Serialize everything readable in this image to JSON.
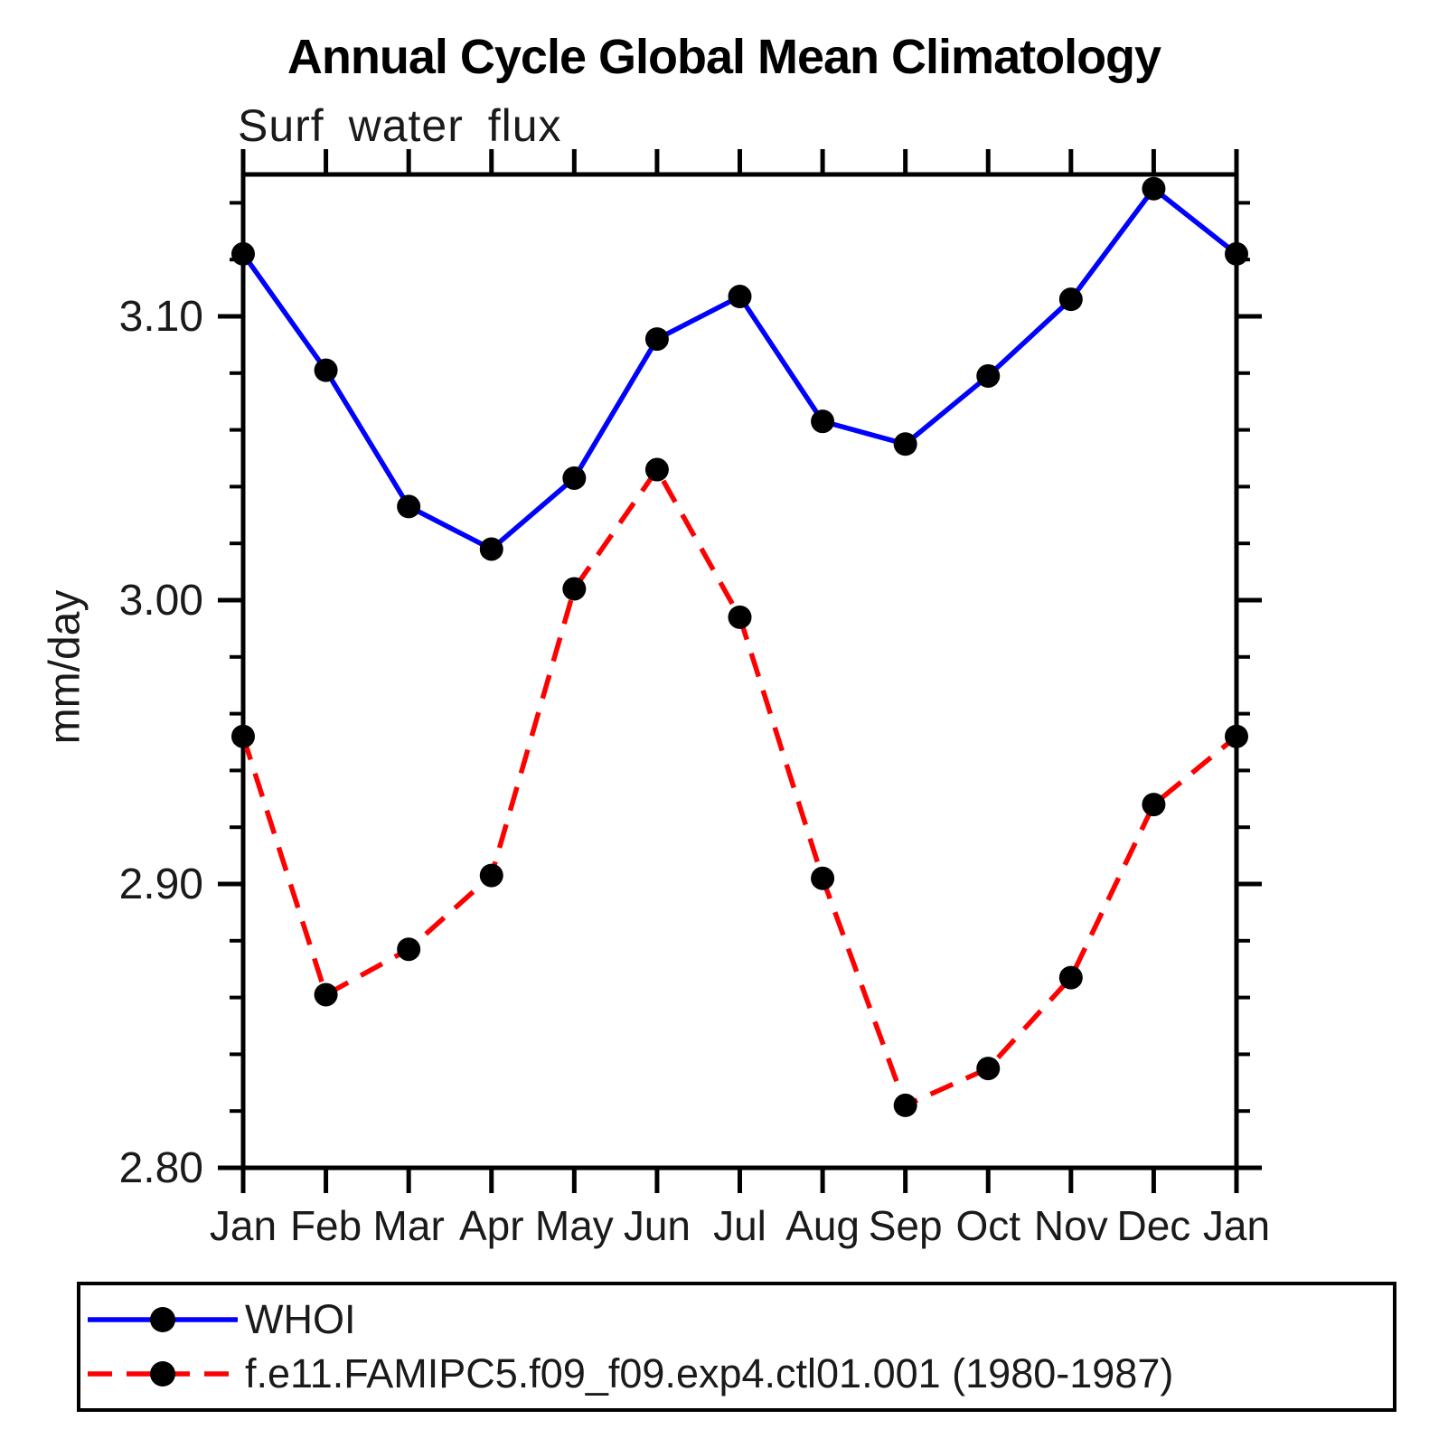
{
  "chart_data": {
    "type": "line",
    "title": "Annual Cycle Global Mean Climatology",
    "subtitle": "Surf water flux",
    "ylabel": "mm/day",
    "xlabel": "",
    "x_categories": [
      "Jan",
      "Feb",
      "Mar",
      "Apr",
      "May",
      "Jun",
      "Jul",
      "Aug",
      "Sep",
      "Oct",
      "Nov",
      "Dec",
      "Jan"
    ],
    "series": [
      {
        "name": "WHOI",
        "color": "#0000ff",
        "line_style": "solid",
        "marker": "filled-circle",
        "marker_color": "#000000",
        "values": [
          3.122,
          3.081,
          3.033,
          3.018,
          3.043,
          3.092,
          3.107,
          3.063,
          3.055,
          3.079,
          3.106,
          3.145,
          3.122
        ]
      },
      {
        "name": "f.e11.FAMIPC5.f09_f09.exp4.ctl01.001 (1980-1987)",
        "color": "#ff0000",
        "line_style": "dashed",
        "marker": "filled-circle",
        "marker_color": "#000000",
        "values": [
          2.952,
          2.861,
          2.877,
          2.903,
          3.004,
          3.046,
          2.994,
          2.902,
          2.822,
          2.835,
          2.867,
          2.928,
          2.952
        ]
      }
    ],
    "ylim": [
      2.8,
      3.15
    ],
    "yticks_major": [
      2.8,
      2.9,
      3.0,
      3.1
    ],
    "ytick_labels": [
      "2.80",
      "2.90",
      "3.00",
      "3.10"
    ],
    "ytick_minor_step": 0.02,
    "grid": false,
    "legend_position": "bottom-left",
    "axis_color": "#000000",
    "background": "#ffffff"
  }
}
